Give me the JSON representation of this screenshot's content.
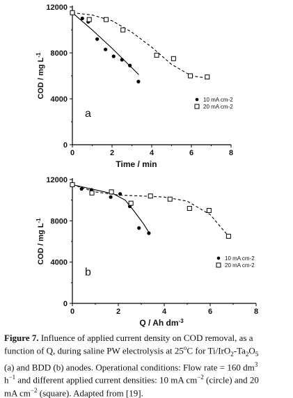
{
  "chart_data": [
    {
      "type": "scatter",
      "panel_label": "a",
      "xlabel": "Time / min",
      "ylabel_main": "COD / mg L",
      "ylabel_sup": "-1",
      "xlim": [
        0,
        8
      ],
      "ylim": [
        0,
        12000
      ],
      "xticks": [
        0,
        2,
        4,
        6,
        8
      ],
      "yticks": [
        0,
        4000,
        8000,
        12000
      ],
      "legend_position": "lower-right",
      "series": [
        {
          "name": "10 mA cm-2",
          "marker": "filled-circle",
          "fit_line": "solid",
          "x": [
            0,
            0.5,
            0.8,
            1.25,
            1.67,
            2.08,
            2.5,
            2.9,
            3.33
          ],
          "y": [
            11500,
            11000,
            10700,
            9200,
            8300,
            7700,
            7400,
            6900,
            5500
          ],
          "fit": [
            [
              0,
              11500
            ],
            [
              1,
              10000
            ],
            [
              2,
              8400
            ],
            [
              3,
              6700
            ],
            [
              3.35,
              6100
            ]
          ]
        },
        {
          "name": "20 mA cm-2",
          "marker": "open-square",
          "fit_line": "dashed",
          "x": [
            0,
            0.85,
            1.7,
            2.55,
            4.25,
            5.1,
            5.95,
            6.8
          ],
          "y": [
            11500,
            10900,
            10900,
            10000,
            7800,
            7500,
            6000,
            5900
          ],
          "fit": [
            [
              0,
              11500
            ],
            [
              1,
              11300
            ],
            [
              2,
              10800
            ],
            [
              3,
              9800
            ],
            [
              4,
              8500
            ],
            [
              5,
              7000
            ],
            [
              6,
              6000
            ],
            [
              6.8,
              5800
            ]
          ]
        }
      ]
    },
    {
      "type": "scatter",
      "panel_label": "b",
      "xlabel": "Q / Ah dm",
      "xlabel_sup": "-3",
      "ylabel_main": "COD / mg L",
      "ylabel_sup": "-1",
      "xlim": [
        0,
        8
      ],
      "ylim": [
        0,
        12000
      ],
      "xticks": [
        0,
        2,
        4,
        6,
        8
      ],
      "yticks": [
        0,
        4000,
        8000,
        12000
      ],
      "legend_position": "lower-right",
      "series": [
        {
          "name": "10 mA cm-2",
          "marker": "filled-circle",
          "fit_line": "solid",
          "x": [
            0,
            0.4,
            0.83,
            1.67,
            2.08,
            2.5,
            2.9,
            3.33
          ],
          "y": [
            11500,
            11100,
            11000,
            10300,
            10600,
            9400,
            7300,
            6800
          ],
          "fit": [
            [
              0,
              11500
            ],
            [
              1,
              11000
            ],
            [
              1.8,
              10600
            ],
            [
              2.3,
              10000
            ],
            [
              2.7,
              8900
            ],
            [
              3.1,
              7700
            ],
            [
              3.35,
              6800
            ]
          ]
        },
        {
          "name": "20 mA cm-2",
          "marker": "open-square",
          "fit_line": "dashed",
          "x": [
            0,
            0.85,
            1.7,
            2.55,
            3.4,
            4.25,
            5.1,
            5.95,
            6.8
          ],
          "y": [
            11500,
            10700,
            10800,
            9700,
            10400,
            10100,
            9200,
            9000,
            6500
          ],
          "fit": [
            [
              0,
              11500
            ],
            [
              1,
              10800
            ],
            [
              2,
              10500
            ],
            [
              3,
              10400
            ],
            [
              4,
              10300
            ],
            [
              5,
              9900
            ],
            [
              6,
              8600
            ],
            [
              6.8,
              6500
            ]
          ]
        }
      ]
    }
  ],
  "caption": {
    "lines": [
      [
        {
          "b": true,
          "t": "Figure 7."
        },
        {
          "t": " Influence of applied current density on COD removal, as a"
        }
      ],
      [
        {
          "t": "function of Q, during saline PW electrolysis at 25"
        },
        {
          "sup": "o"
        },
        {
          "t": "C for Ti/IrO"
        },
        {
          "sub": "2"
        },
        {
          "t": "-Ta"
        },
        {
          "sub": "2"
        },
        {
          "t": "O"
        },
        {
          "sub": "5"
        }
      ],
      [
        {
          "t": "(a) and BDD (b) anodes. Operational conditions: Flow rate = 160 dm"
        },
        {
          "sup": "3"
        }
      ],
      [
        {
          "t": "h"
        },
        {
          "sup": "−1"
        },
        {
          "t": " and different applied current densities: 10 mA cm"
        },
        {
          "sup": "−2"
        },
        {
          "t": " (circle) and 20"
        }
      ],
      [
        {
          "t": "mA cm"
        },
        {
          "sup": "−2"
        },
        {
          "t": " (square). Adapted from [19]."
        }
      ]
    ]
  }
}
